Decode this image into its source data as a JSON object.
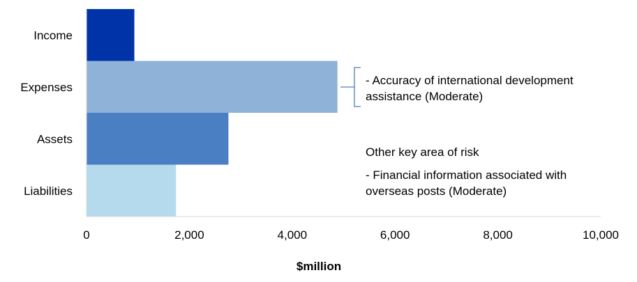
{
  "chart_data": {
    "type": "bar",
    "orientation": "horizontal",
    "categories": [
      "Income",
      "Expenses",
      "Assets",
      "Liabilities"
    ],
    "values": [
      930,
      4880,
      2760,
      1740
    ],
    "colors": [
      "#0033a8",
      "#8fb2d9",
      "#4a7fc4",
      "#b6daed"
    ],
    "xlabel": "$million",
    "xlim": [
      0,
      10000
    ],
    "xticks": [
      0,
      2000,
      4000,
      6000,
      8000,
      10000
    ],
    "xtick_labels": [
      "0",
      "2,000",
      "4,000",
      "6,000",
      "8,000",
      "10,000"
    ],
    "grid": false,
    "legend": "none"
  },
  "annotations": {
    "expenses_risk": {
      "line1": "- Accuracy of international development",
      "line2": "assistance (Moderate)"
    },
    "other_risk": {
      "heading": "Other key area of risk",
      "line1": "- Financial information associated with",
      "line2": "overseas posts (Moderate)"
    }
  },
  "colors": {
    "axis": "#d9d9d9",
    "bracket": "#4a7fc4"
  }
}
